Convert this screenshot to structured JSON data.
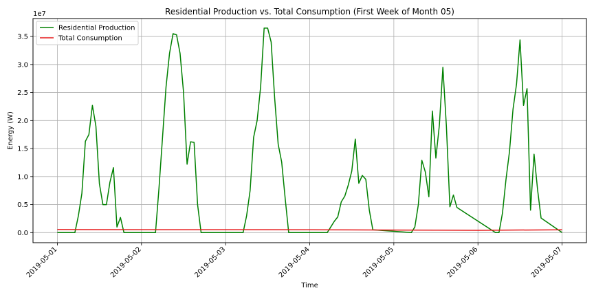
{
  "chart_data": {
    "type": "line",
    "title": "Residential Production vs. Total Consumption (First Week of Month 05)",
    "xlabel": "Time",
    "ylabel": "Energy (W)",
    "y_scale_label": "1e7",
    "xlim": [
      "2019-04-30T17:03",
      "2019-05-07T06:57"
    ],
    "ylim": [
      -0.18,
      3.82
    ],
    "y_unit_multiplier": 10000000,
    "x_tick_labels": [
      "2019-05-01",
      "2019-05-02",
      "2019-05-03",
      "2019-05-04",
      "2019-05-05",
      "2019-05-06",
      "2019-05-07"
    ],
    "y_tick_labels": [
      "0.0",
      "0.5",
      "1.0",
      "1.5",
      "2.0",
      "2.5",
      "3.0",
      "3.5"
    ],
    "grid": true,
    "legend_position": "top-left",
    "series": [
      {
        "name": "Residential Production",
        "color": "#008000",
        "x": [
          "2019-05-01T00:00",
          "2019-05-01T05:00",
          "2019-05-01T06:00",
          "2019-05-01T07:00",
          "2019-05-01T08:00",
          "2019-05-01T09:00",
          "2019-05-01T10:00",
          "2019-05-01T11:00",
          "2019-05-01T12:00",
          "2019-05-01T13:00",
          "2019-05-01T14:00",
          "2019-05-01T15:00",
          "2019-05-01T16:00",
          "2019-05-01T17:00",
          "2019-05-01T18:00",
          "2019-05-01T19:00",
          "2019-05-02T04:00",
          "2019-05-02T05:00",
          "2019-05-02T06:00",
          "2019-05-02T07:00",
          "2019-05-02T08:00",
          "2019-05-02T09:00",
          "2019-05-02T10:00",
          "2019-05-02T11:00",
          "2019-05-02T12:00",
          "2019-05-02T13:00",
          "2019-05-02T14:00",
          "2019-05-02T15:00",
          "2019-05-02T16:00",
          "2019-05-02T17:00",
          "2019-05-02T18:00",
          "2019-05-03T05:00",
          "2019-05-03T06:00",
          "2019-05-03T07:00",
          "2019-05-03T08:00",
          "2019-05-03T09:00",
          "2019-05-03T10:00",
          "2019-05-03T11:00",
          "2019-05-03T12:00",
          "2019-05-03T13:00",
          "2019-05-03T14:00",
          "2019-05-03T15:00",
          "2019-05-03T16:00",
          "2019-05-03T17:00",
          "2019-05-03T18:00",
          "2019-05-04T05:00",
          "2019-05-04T06:00",
          "2019-05-04T07:00",
          "2019-05-04T08:00",
          "2019-05-04T09:00",
          "2019-05-04T10:00",
          "2019-05-04T11:00",
          "2019-05-04T12:00",
          "2019-05-04T13:00",
          "2019-05-04T14:00",
          "2019-05-04T15:00",
          "2019-05-04T16:00",
          "2019-05-04T17:00",
          "2019-05-04T18:00",
          "2019-05-05T05:00",
          "2019-05-05T06:00",
          "2019-05-05T07:00",
          "2019-05-05T08:00",
          "2019-05-05T09:00",
          "2019-05-05T10:00",
          "2019-05-05T11:00",
          "2019-05-05T12:00",
          "2019-05-05T13:00",
          "2019-05-05T14:00",
          "2019-05-05T15:00",
          "2019-05-05T16:00",
          "2019-05-05T17:00",
          "2019-05-05T18:00",
          "2019-05-06T05:00",
          "2019-05-06T06:00",
          "2019-05-06T07:00",
          "2019-05-06T08:00",
          "2019-05-06T09:00",
          "2019-05-06T10:00",
          "2019-05-06T11:00",
          "2019-05-06T12:00",
          "2019-05-06T13:00",
          "2019-05-06T14:00",
          "2019-05-06T15:00",
          "2019-05-06T16:00",
          "2019-05-06T17:00",
          "2019-05-06T18:00",
          "2019-05-07T00:00"
        ],
        "y": [
          0,
          0,
          0.3,
          0.7,
          1.63,
          1.75,
          2.27,
          1.9,
          0.87,
          0.5,
          0.5,
          0.9,
          1.16,
          0.1,
          0.27,
          0,
          0,
          0.8,
          1.7,
          2.6,
          3.2,
          3.55,
          3.53,
          3.2,
          2.5,
          1.22,
          1.62,
          1.61,
          0.5,
          0,
          0,
          0,
          0.3,
          0.75,
          1.7,
          2.0,
          2.6,
          3.65,
          3.65,
          3.4,
          2.4,
          1.58,
          1.26,
          0.61,
          0,
          0,
          0.1,
          0.2,
          0.28,
          0.55,
          0.65,
          0.85,
          1.1,
          1.67,
          0.88,
          1.02,
          0.95,
          0.4,
          0.05,
          0,
          0.1,
          0.5,
          1.29,
          1.08,
          0.64,
          2.17,
          1.33,
          1.92,
          2.95,
          1.9,
          0.46,
          0.67,
          0.45,
          0,
          0,
          0.35,
          0.95,
          1.45,
          2.2,
          2.65,
          3.44,
          2.27,
          2.57,
          0.4,
          1.4,
          0.77,
          0.26,
          0
        ]
      },
      {
        "name": "Total Consumption",
        "color": "#e6191a",
        "x": [
          "2019-05-01T00:00",
          "2019-05-02T00:00",
          "2019-05-03T00:00",
          "2019-05-04T00:00",
          "2019-05-05T00:00",
          "2019-05-06T00:00",
          "2019-05-07T00:00"
        ],
        "y": [
          0.054,
          0.052,
          0.052,
          0.051,
          0.046,
          0.041,
          0.051
        ]
      }
    ]
  }
}
